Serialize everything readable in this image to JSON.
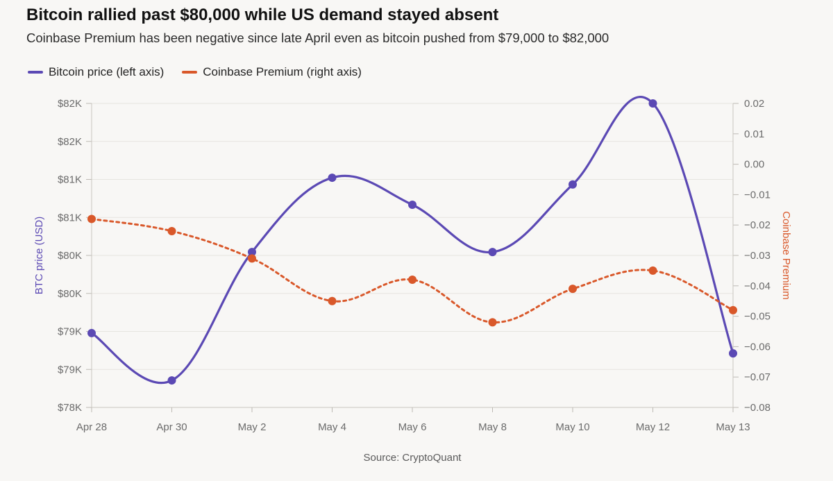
{
  "title": "Bitcoin rallied past $80,000 while US demand stayed absent",
  "subtitle": "Coinbase Premium has been negative since late April even as bitcoin pushed from $79,000 to $82,000",
  "source": "Source: CryptoQuant",
  "colors": {
    "btc": "#5b49b4",
    "premium": "#d9582a",
    "background": "#f8f7f5",
    "grid": "#e6e4e0"
  },
  "chart_data": {
    "type": "line",
    "categories": [
      "Apr 28",
      "Apr 30",
      "May 2",
      "May 4",
      "May 6",
      "May 8",
      "May 10",
      "May 12",
      "May 13"
    ],
    "series": [
      {
        "name": "Bitcoin price (left axis)",
        "axis": "left",
        "style": "solid",
        "values": [
          79100,
          78400,
          80300,
          81400,
          81000,
          80300,
          81300,
          82500,
          78800
        ]
      },
      {
        "name": "Coinbase Premium (right axis)",
        "axis": "right",
        "style": "dotted",
        "values": [
          -0.018,
          -0.022,
          -0.031,
          -0.045,
          -0.038,
          -0.052,
          -0.041,
          -0.035,
          -0.048
        ]
      }
    ],
    "ylabel_left": "BTC price (USD)",
    "ylabel_right": "Coinbase Premium",
    "ylim_left": [
      78000,
      82500
    ],
    "ylim_right": [
      -0.08,
      0.02
    ],
    "yticks_left": [
      "$82K",
      "$82K",
      "$81K",
      "$81K",
      "$80K",
      "$80K",
      "$79K",
      "$79K",
      "$78K"
    ],
    "yticks_right": [
      "0.02",
      "0.01",
      "0.00",
      "−0.01",
      "−0.02",
      "−0.03",
      "−0.04",
      "−0.05",
      "−0.06",
      "−0.07",
      "−0.08"
    ],
    "legend_position": "top-left",
    "grid": true
  }
}
